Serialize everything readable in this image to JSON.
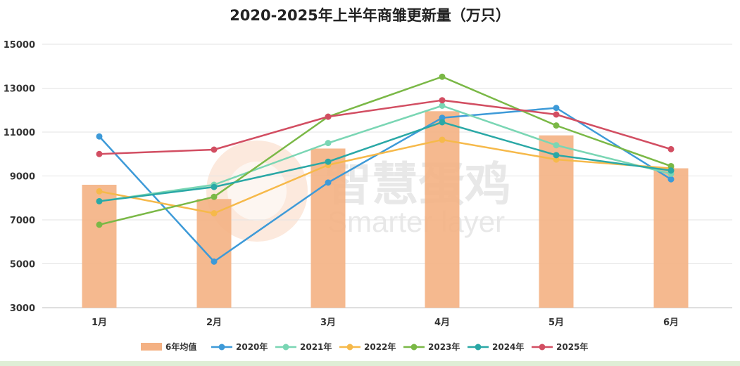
{
  "chart_data": {
    "type": "bar+line",
    "title": "2020-2025年上半年商雏更新量（万只）",
    "categories": [
      "1月",
      "2月",
      "3月",
      "4月",
      "5月",
      "6月"
    ],
    "ylim": [
      3000,
      15000
    ],
    "yticks": [
      3000,
      5000,
      7000,
      9000,
      11000,
      13000,
      15000
    ],
    "grid": true,
    "legend_position": "bottom",
    "bar_series": {
      "name": "6年均值",
      "color": "#f4b183",
      "values": [
        8600,
        7950,
        10250,
        11950,
        10850,
        9350
      ]
    },
    "series": [
      {
        "name": "2020年",
        "color": "#3d9ad8",
        "values": [
          10800,
          5100,
          8700,
          11650,
          12100,
          8850
        ]
      },
      {
        "name": "2021年",
        "color": "#7ad6b4",
        "values": [
          7850,
          8600,
          10500,
          12200,
          10400,
          9100
        ]
      },
      {
        "name": "2022年",
        "color": "#f6b94a",
        "values": [
          8300,
          7300,
          9500,
          10650,
          9750,
          9350
        ]
      },
      {
        "name": "2023年",
        "color": "#7ab846",
        "values": [
          6780,
          8050,
          11700,
          13520,
          11300,
          9450
        ]
      },
      {
        "name": "2024年",
        "color": "#2aa8a6",
        "values": [
          7850,
          8500,
          9650,
          11450,
          9950,
          9250
        ]
      },
      {
        "name": "2025年",
        "color": "#d24e62",
        "values": [
          10000,
          10200,
          11700,
          12450,
          11800,
          10220
        ]
      }
    ]
  },
  "watermark": {
    "text_cn": "智慧蛋鸡",
    "text_en": "Smarter layer"
  }
}
